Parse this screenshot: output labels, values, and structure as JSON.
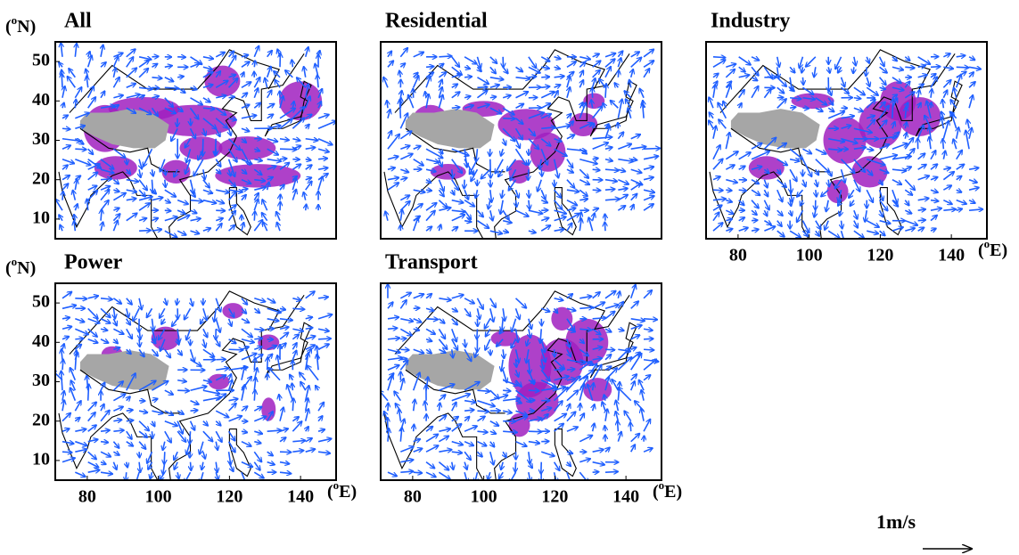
{
  "panels": [
    {
      "title": "All"
    },
    {
      "title": "Residential"
    },
    {
      "title": "Industry"
    },
    {
      "title": "Power"
    },
    {
      "title": "Transport"
    }
  ],
  "lat_unit": [
    "(",
    "o",
    "N)"
  ],
  "lon_unit": [
    "(",
    "o",
    "E)"
  ],
  "lat_ticks": [
    10,
    20,
    30,
    40,
    50
  ],
  "lon_ticks": [
    80,
    100,
    120,
    140
  ],
  "lon_range": [
    71,
    150
  ],
  "lat_range": [
    5,
    55
  ],
  "reference_vector": "1m/s"
}
